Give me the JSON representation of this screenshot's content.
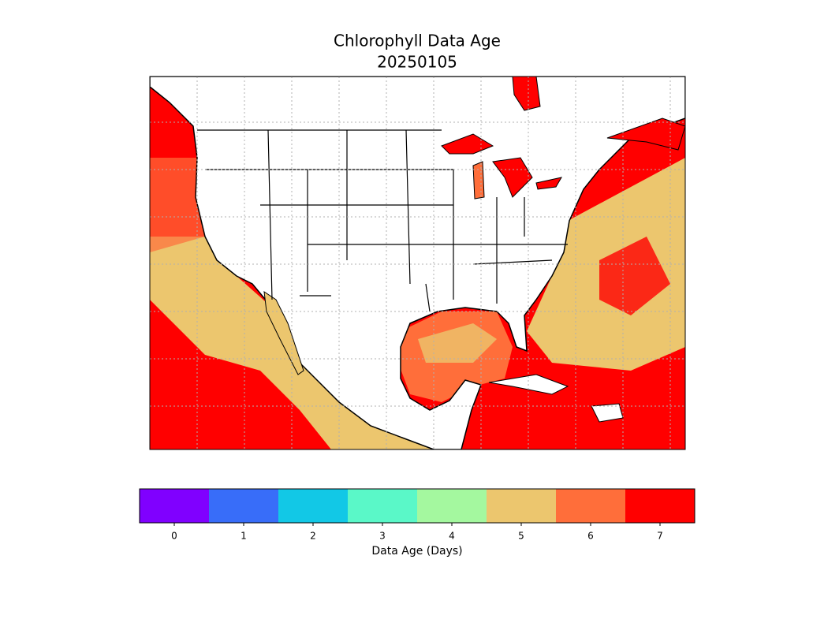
{
  "map": {
    "title": "Chlorophyll Data Age",
    "subtitle": "20250105",
    "colorbar": {
      "label": "Data Age (Days)",
      "ticks": [
        0,
        1,
        2,
        3,
        4,
        5,
        6,
        7
      ],
      "colors": [
        "#8000ff",
        "#386df9",
        "#12c8e6",
        "#5af8c8",
        "#a4f89f",
        "#ecc66e",
        "#ff6e3a",
        "#ff0000"
      ]
    }
  }
}
